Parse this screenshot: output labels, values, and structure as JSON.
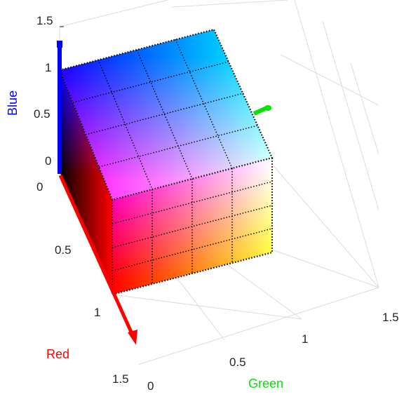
{
  "axes": {
    "red": {
      "label": "Red",
      "color": "#ff0000",
      "ticks": [
        "0",
        "0.5",
        "1",
        "1.5"
      ]
    },
    "green": {
      "label": "Green",
      "color": "#00e600",
      "ticks": [
        "0",
        "0.5",
        "1",
        "1.5"
      ]
    },
    "blue": {
      "label": "Blue",
      "color": "#0000ff",
      "ticks": [
        "0",
        "0.5",
        "1",
        "1.5"
      ]
    },
    "range": [
      0,
      1.5
    ]
  },
  "cube": {
    "type": "rgb-color-cube",
    "range": [
      0,
      1
    ],
    "grid_divisions": 4,
    "edge_style": "dotted black"
  }
}
